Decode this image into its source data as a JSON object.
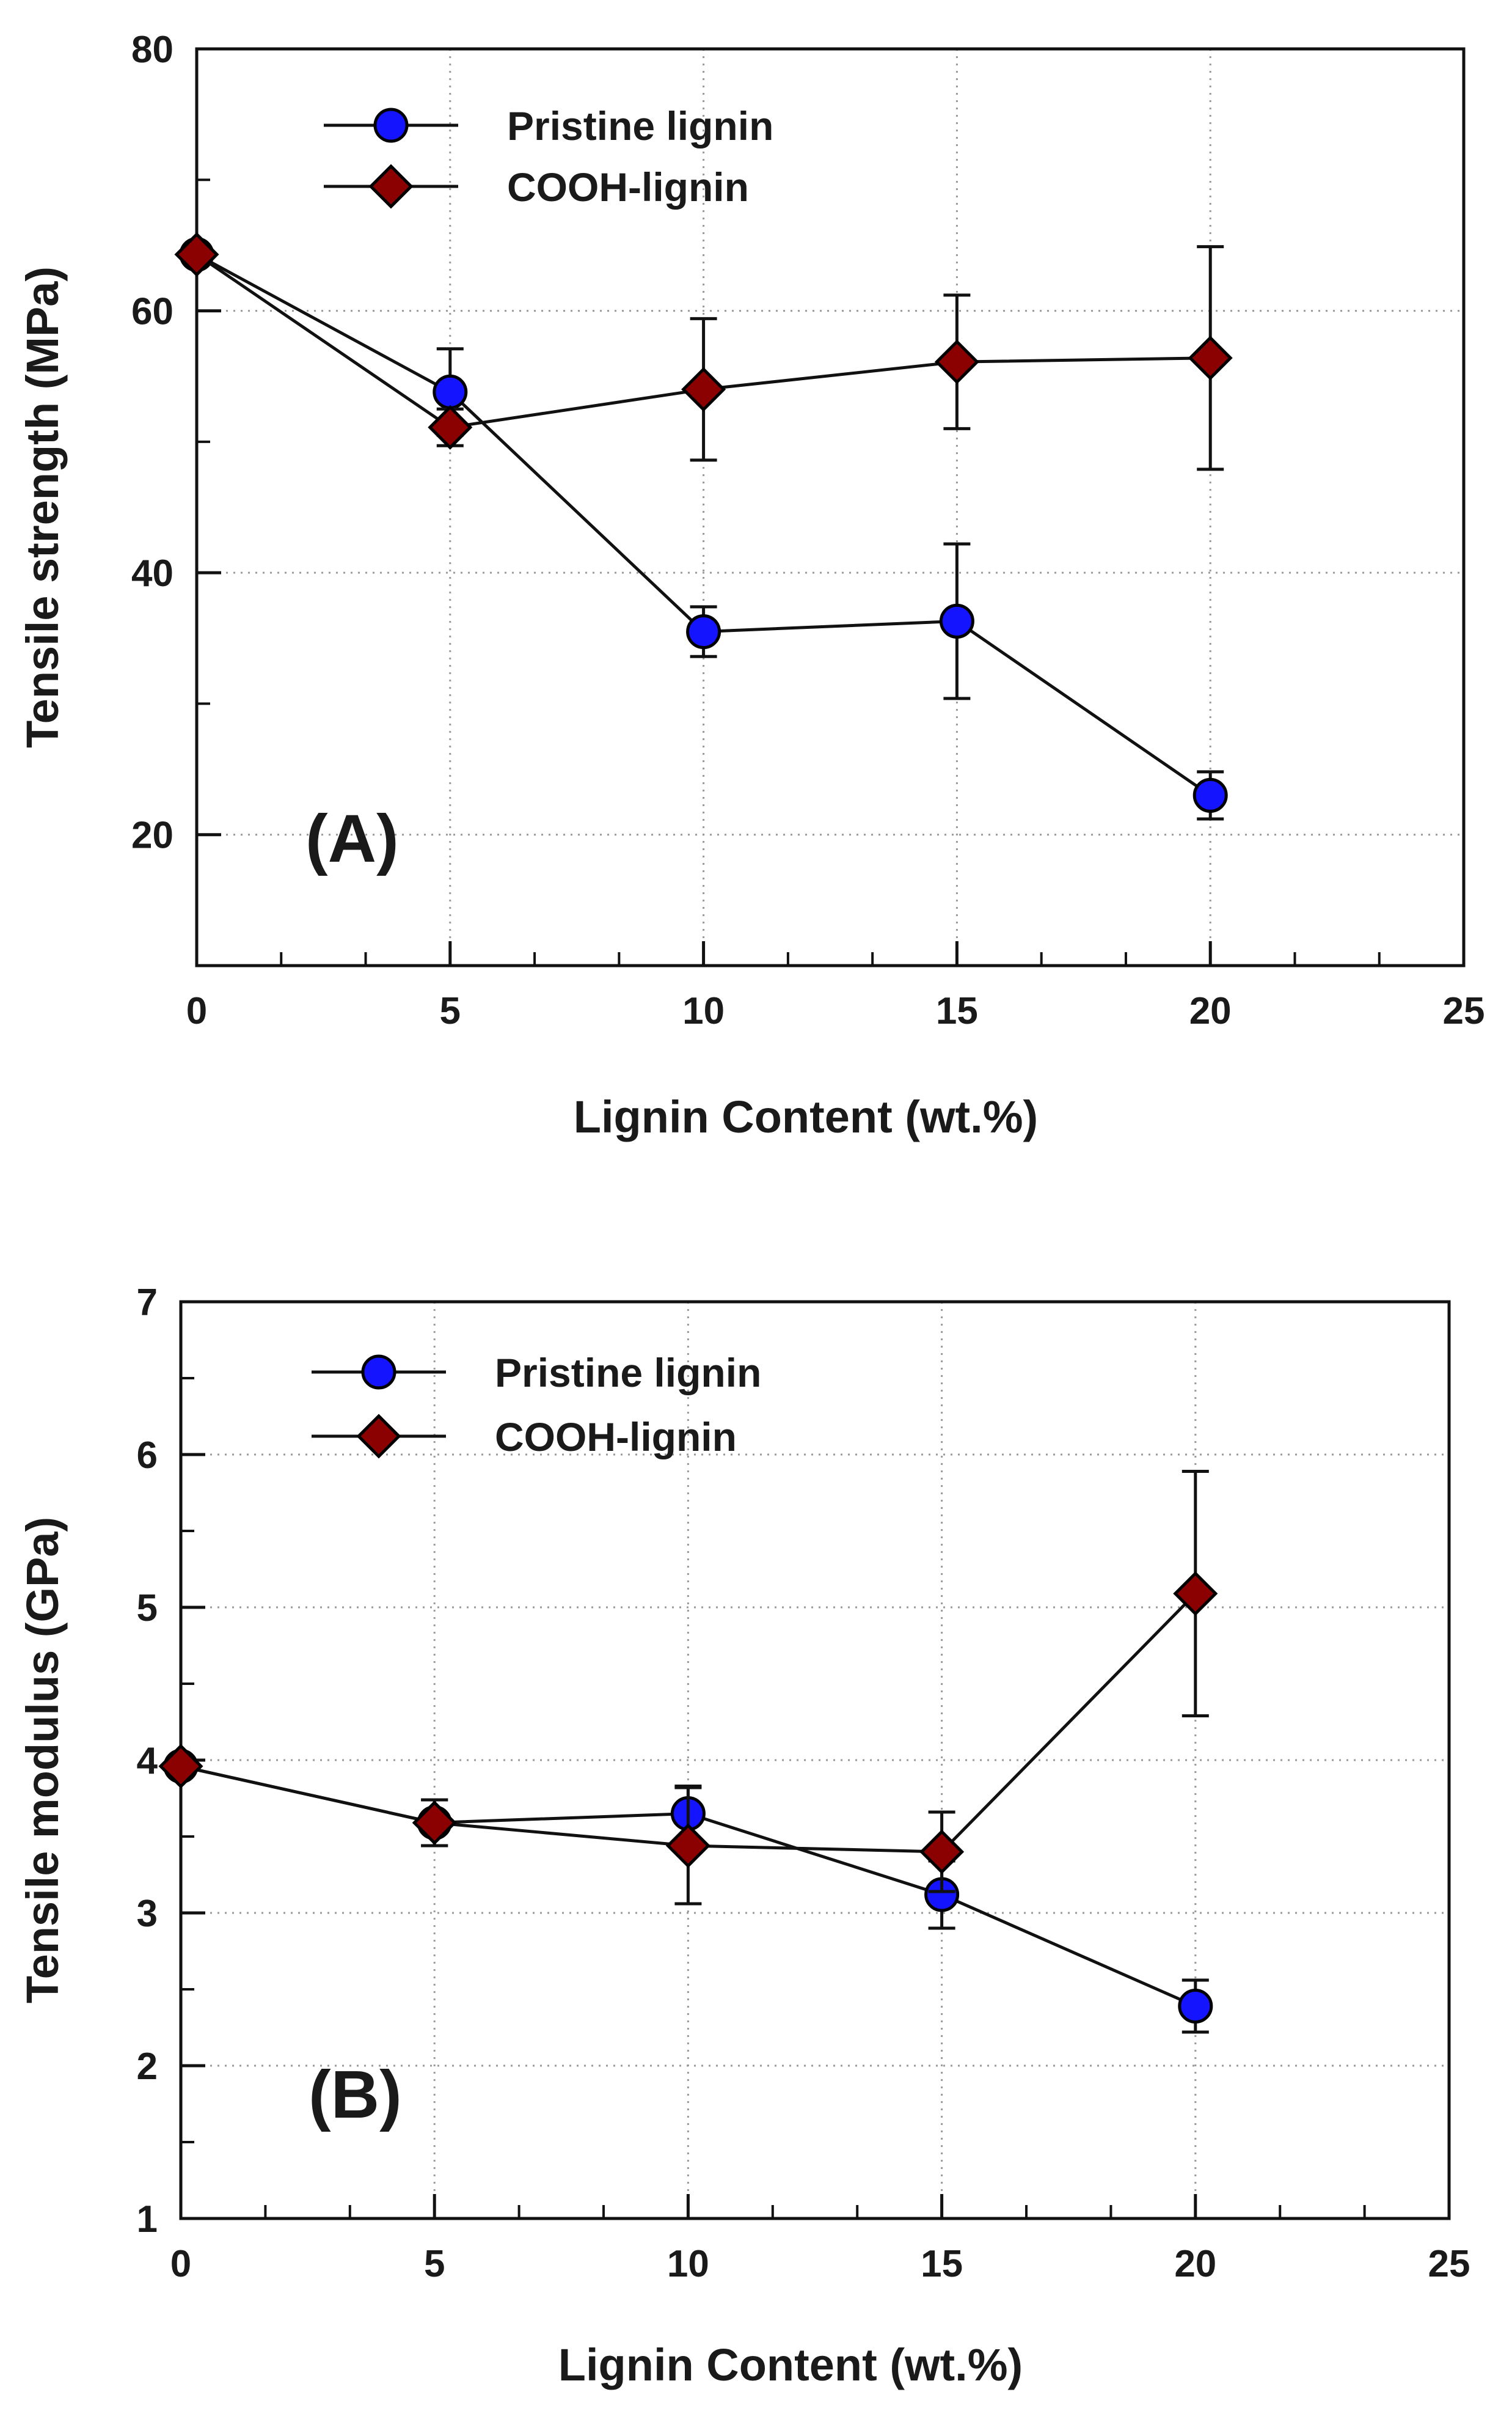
{
  "chart_data": [
    {
      "type": "line",
      "panel_label": "(A)",
      "xlabel": "Lignin Content (wt.%)",
      "ylabel": "Tensile strength (MPa)",
      "xlim": [
        0,
        25
      ],
      "ylim": [
        10,
        80
      ],
      "xticks": [
        0,
        5,
        10,
        15,
        20,
        25
      ],
      "yticks": [
        20,
        40,
        60,
        80
      ],
      "x_minor_step": 1.6667,
      "y_minor_step": 10,
      "grid": true,
      "legend_position": "top-left",
      "series": [
        {
          "name": "Pristine lignin",
          "marker": "circle",
          "color": "#1414ff",
          "x": [
            0,
            5,
            10,
            15,
            20
          ],
          "values": [
            64.3,
            53.8,
            35.5,
            36.3,
            23.0
          ],
          "error": [
            0,
            3.3,
            1.9,
            5.9,
            1.8
          ]
        },
        {
          "name": "COOH-lignin",
          "marker": "diamond",
          "color": "#8b0000",
          "x": [
            0,
            5,
            10,
            15,
            20
          ],
          "values": [
            64.3,
            51.1,
            54.0,
            56.1,
            56.4
          ],
          "error": [
            0,
            1.4,
            5.4,
            5.1,
            8.5
          ]
        }
      ]
    },
    {
      "type": "line",
      "panel_label": "(B)",
      "xlabel": "Lignin Content (wt.%)",
      "ylabel": "Tensile modulus (GPa)",
      "xlim": [
        0,
        25
      ],
      "ylim": [
        1,
        7
      ],
      "xticks": [
        0,
        5,
        10,
        15,
        20,
        25
      ],
      "yticks": [
        1,
        2,
        3,
        4,
        5,
        6,
        7
      ],
      "x_minor_step": 1.6667,
      "y_minor_step": 0.5,
      "grid": true,
      "legend_position": "top-left",
      "series": [
        {
          "name": "Pristine lignin",
          "marker": "circle",
          "color": "#1414ff",
          "x": [
            0,
            5,
            10,
            15,
            20
          ],
          "values": [
            3.96,
            3.59,
            3.65,
            3.12,
            2.39
          ],
          "error": [
            0,
            0.15,
            0.18,
            0.22,
            0.17
          ]
        },
        {
          "name": "COOH-lignin",
          "marker": "diamond",
          "color": "#8b0000",
          "x": [
            0,
            5,
            10,
            15,
            20
          ],
          "values": [
            3.96,
            3.59,
            3.44,
            3.4,
            5.09
          ],
          "error": [
            0,
            0.15,
            0.38,
            0.26,
            0.8
          ]
        }
      ]
    }
  ]
}
